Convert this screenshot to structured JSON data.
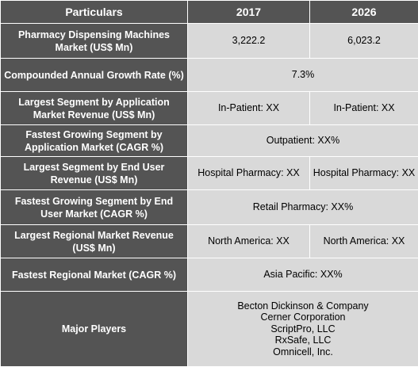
{
  "header": {
    "particulars": "Particulars",
    "year_a": "2017",
    "year_b": "2026"
  },
  "rows": {
    "market": {
      "label": "Pharmacy Dispensing Machines Market (US$ Mn)",
      "v2017": "3,222.2",
      "v2026": "6,023.2"
    },
    "cagr": {
      "label": "Compounded Annual Growth Rate (%)",
      "value": "7.3%"
    },
    "largest_app": {
      "label": "Largest Segment by Application Market Revenue (US$ Mn)",
      "v2017": "In-Patient: XX",
      "v2026": "In-Patient:  XX"
    },
    "fastest_app": {
      "label": "Fastest Growing Segment by Application Market (CAGR %)",
      "value": "Outpatient:  XX%"
    },
    "largest_end": {
      "label": "Largest Segment by End User Revenue (US$ Mn)",
      "v2017": "Hospital Pharmacy: XX",
      "v2026": "Hospital Pharmacy: XX"
    },
    "fastest_end": {
      "label": "Fastest Growing Segment by End User Market (CAGR %)",
      "value": "Retail Pharmacy:  XX%"
    },
    "largest_region": {
      "label": "Largest Regional Market Revenue (US$ Mn)",
      "v2017": "North America: XX",
      "v2026": "North America: XX"
    },
    "fastest_region": {
      "label": "Fastest Regional Market (CAGR %)",
      "value": "Asia Pacific: XX%"
    },
    "players": {
      "label": "Major Players",
      "list": [
        "Becton Dickinson & Company",
        "Cerner Corporation",
        "ScriptPro, LLC",
        "RxSafe, LLC",
        "Omnicell, Inc."
      ]
    }
  }
}
